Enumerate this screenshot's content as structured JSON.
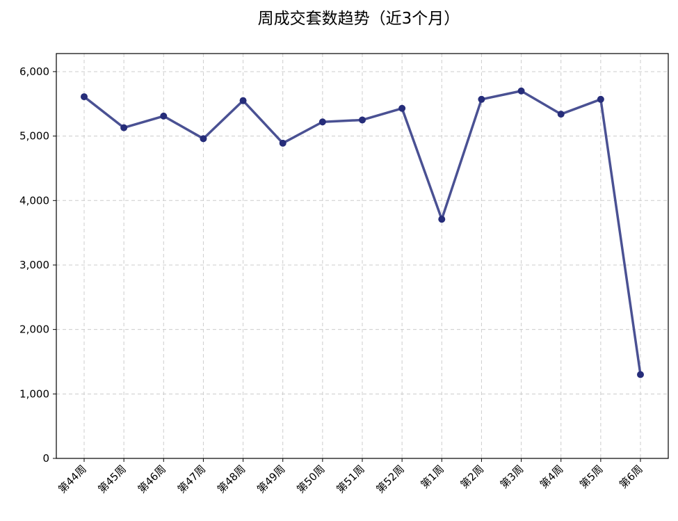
{
  "chart_data": {
    "type": "line",
    "title": "周成交套数趋势（近3个月）",
    "xlabel": "",
    "ylabel": "",
    "categories": [
      "第44周",
      "第45周",
      "第46周",
      "第47周",
      "第48周",
      "第49周",
      "第50周",
      "第51周",
      "第52周",
      "第1周",
      "第2周",
      "第3周",
      "第4周",
      "第5周",
      "第6周"
    ],
    "series": [
      {
        "values": [
          5610,
          5130,
          5310,
          4960,
          5550,
          4890,
          5220,
          5250,
          5430,
          3710,
          5570,
          5700,
          5340,
          5570,
          1300
        ]
      }
    ],
    "ylim": [
      0,
      6280
    ],
    "yticks": [
      0,
      1000,
      2000,
      3000,
      4000,
      5000,
      6000
    ],
    "ytick_labels": [
      "0",
      "1,000",
      "2,000",
      "3,000",
      "4,000",
      "5,000",
      "6,000"
    ],
    "grid": true,
    "line_color": "#3b428a",
    "marker_color": "#262d7a",
    "marker": "circle"
  }
}
